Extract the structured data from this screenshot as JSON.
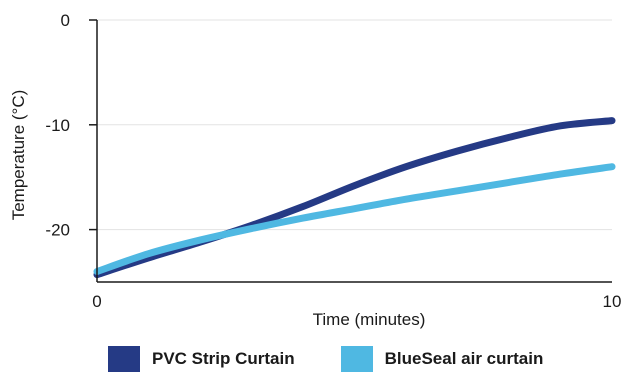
{
  "chart_data": {
    "type": "line",
    "xlabel": "Time (minutes)",
    "ylabel": "Temperature (°C)",
    "xlim": [
      0,
      10
    ],
    "ylim": [
      -25,
      0
    ],
    "x_ticks": [
      0,
      10
    ],
    "x_tick_labels": [
      "0",
      "10"
    ],
    "y_ticks": [
      0,
      -10,
      -20
    ],
    "y_tick_labels": [
      "0",
      "-10",
      "-20"
    ],
    "grid": "horizontal",
    "legend_position": "bottom",
    "series": [
      {
        "name": "PVC Strip Curtain",
        "color": "#253A85",
        "x": [
          0,
          1,
          2,
          3,
          4,
          5,
          6,
          7,
          8,
          9,
          10
        ],
        "y": [
          -24.3,
          -22.7,
          -21.2,
          -19.6,
          -17.8,
          -15.8,
          -14.0,
          -12.5,
          -11.2,
          -10.1,
          -9.6
        ]
      },
      {
        "name": "BlueSeal air curtain",
        "color": "#4FB8E2",
        "x": [
          0,
          1,
          2,
          3,
          4,
          5,
          6,
          7,
          8,
          9,
          10
        ],
        "y": [
          -24.0,
          -22.3,
          -21.0,
          -19.9,
          -18.9,
          -18.0,
          -17.1,
          -16.3,
          -15.5,
          -14.7,
          -14.0
        ]
      }
    ]
  }
}
